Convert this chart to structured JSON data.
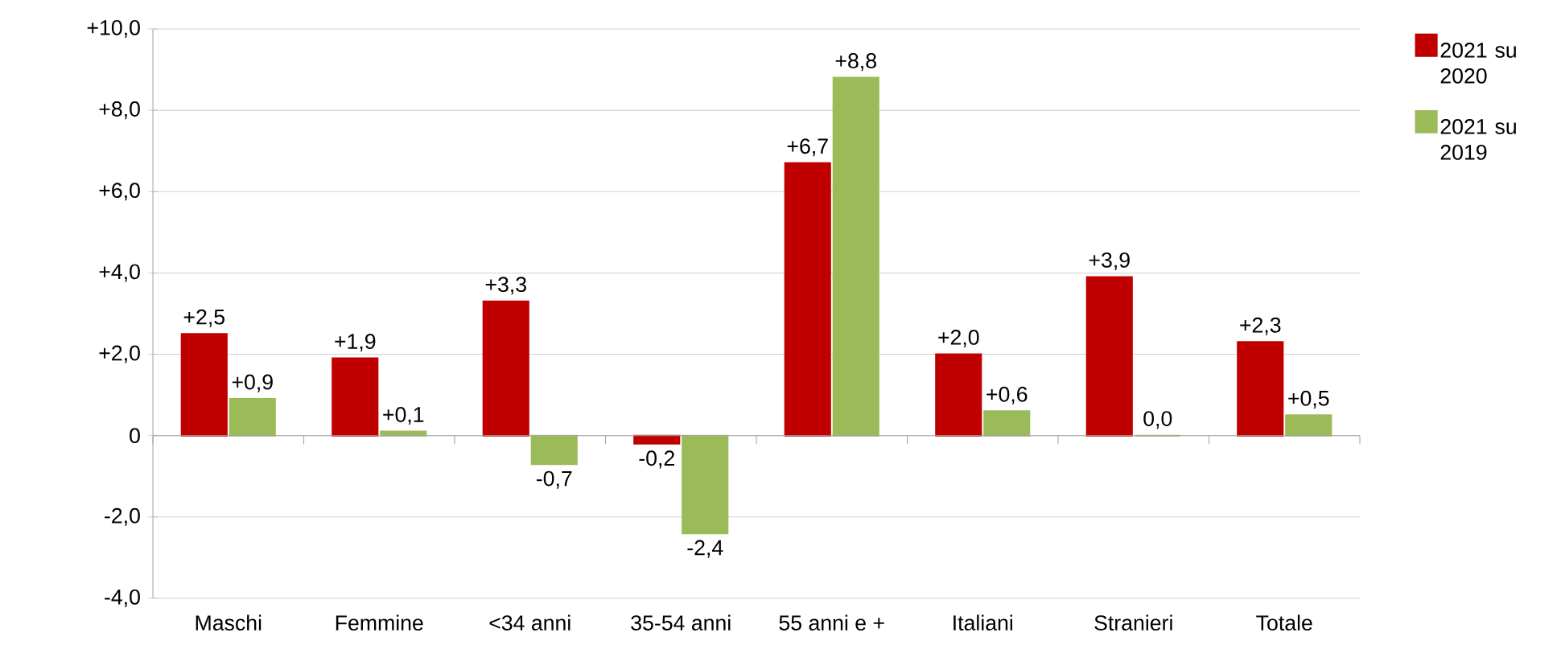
{
  "chart_data": {
    "type": "bar",
    "categories": [
      "Maschi",
      "Femmine",
      "<34 anni",
      "35-54 anni",
      "55 anni e +",
      "Italiani",
      "Stranieri",
      "Totale"
    ],
    "series": [
      {
        "name": "2021 su 2020",
        "color": "#c00000",
        "values": [
          2.5,
          1.9,
          3.3,
          -0.2,
          6.7,
          2.0,
          3.9,
          2.3
        ],
        "value_labels": [
          "+2,5",
          "+1,9",
          "+3,3",
          "-0,2",
          "+6,7",
          "+2,0",
          "+3,9",
          "+2,3"
        ]
      },
      {
        "name": "2021 su 2019",
        "color": "#9bbb59",
        "values": [
          0.9,
          0.1,
          -0.7,
          -2.4,
          8.8,
          0.6,
          0.0,
          0.5
        ],
        "value_labels": [
          "+0,9",
          "+0,1",
          "-0,7",
          "-2,4",
          "+8,8",
          "+0,6",
          "0,0",
          "+0,5"
        ]
      }
    ],
    "ylim": [
      -4,
      10
    ],
    "yticks": [
      {
        "value": -4,
        "label": "-4,0"
      },
      {
        "value": -2,
        "label": "-2,0"
      },
      {
        "value": 0,
        "label": "0"
      },
      {
        "value": 2,
        "label": "+2,0"
      },
      {
        "value": 4,
        "label": "+4,0"
      },
      {
        "value": 6,
        "label": "+6,0"
      },
      {
        "value": 8,
        "label": "+8,0"
      },
      {
        "value": 10,
        "label": "+10,0"
      }
    ],
    "grid": "y",
    "legend": "right"
  }
}
